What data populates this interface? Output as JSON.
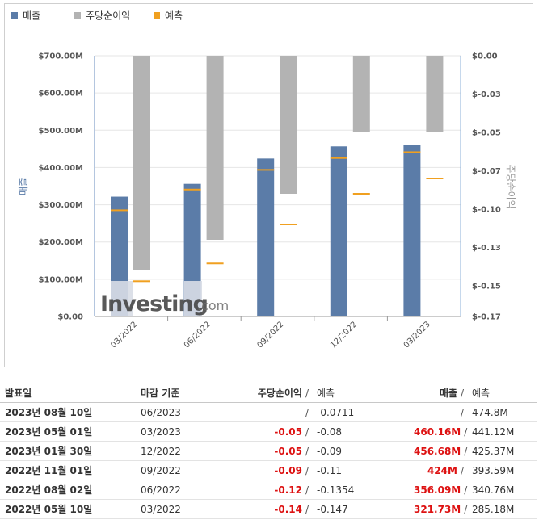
{
  "chart_data": {
    "type": "bar",
    "legend": {
      "placement": "top-left",
      "items": [
        {
          "label": "매출",
          "color": "#5b7ca8"
        },
        {
          "label": "주당순이익",
          "color": "#b3b3b3"
        },
        {
          "label": "예측",
          "color": "#f0a020"
        }
      ]
    },
    "categories": [
      "03/2022",
      "06/2022",
      "09/2022",
      "12/2022",
      "03/2023"
    ],
    "ylabel_left": "매출",
    "ylabel_right": "주당순이익",
    "left_axis": {
      "min": 0,
      "max": 700000000,
      "ticks": [
        0,
        100000000,
        200000000,
        300000000,
        400000000,
        500000000,
        600000000,
        700000000
      ],
      "tick_labels": [
        "$0.00",
        "$100.00M",
        "$200.00M",
        "$300.00M",
        "$400.00M",
        "$500.00M",
        "$600.00M",
        "$700.00M"
      ]
    },
    "right_axis": {
      "min": -0.17,
      "max": 0.0,
      "ticks": [
        0.0,
        -0.025,
        -0.05,
        -0.075,
        -0.1,
        -0.125,
        -0.15,
        -0.175
      ],
      "tick_labels": [
        "$0.00",
        "$-0.03",
        "$-0.05",
        "$-0.07",
        "$-0.10",
        "$-0.13",
        "$-0.15",
        "$-0.17"
      ]
    },
    "series": [
      {
        "name": "매출",
        "axis": "left",
        "values": [
          321730000,
          356090000,
          424000000,
          456680000,
          460160000
        ]
      },
      {
        "name": "매출 예측",
        "axis": "left",
        "values": [
          285180000,
          340760000,
          393590000,
          425370000,
          441120000
        ]
      },
      {
        "name": "주당순이익",
        "axis": "right",
        "values": [
          -0.14,
          -0.12,
          -0.09,
          -0.05,
          -0.05
        ]
      },
      {
        "name": "주당순이익 예측",
        "axis": "right",
        "values": [
          -0.147,
          -0.1354,
          -0.11,
          -0.09,
          -0.08
        ]
      }
    ],
    "watermark": "Investing.com"
  },
  "table": {
    "headers": {
      "date": "발표일",
      "period": "마감 기준",
      "eps": "주당순이익",
      "eps_slash": "/",
      "eps_forecast": "예측",
      "revenue": "매출",
      "rev_slash": "/",
      "rev_forecast": "예측"
    },
    "rows": [
      {
        "date": "2023년 08월 10일",
        "period": "06/2023",
        "eps": "--",
        "eps_forecast": "-0.0711",
        "revenue": "--",
        "rev_forecast": "474.8M"
      },
      {
        "date": "2023년 05월 01일",
        "period": "03/2023",
        "eps": "-0.05",
        "eps_forecast": "-0.08",
        "revenue": "460.16M",
        "rev_forecast": "441.12M"
      },
      {
        "date": "2023년 01월 30일",
        "period": "12/2022",
        "eps": "-0.05",
        "eps_forecast": "-0.09",
        "revenue": "456.68M",
        "rev_forecast": "425.37M"
      },
      {
        "date": "2022년 11월 01일",
        "period": "09/2022",
        "eps": "-0.09",
        "eps_forecast": "-0.11",
        "revenue": "424M",
        "rev_forecast": "393.59M"
      },
      {
        "date": "2022년 08월 02일",
        "period": "06/2022",
        "eps": "-0.12",
        "eps_forecast": "-0.1354",
        "revenue": "356.09M",
        "rev_forecast": "340.76M"
      },
      {
        "date": "2022년 05월 10일",
        "period": "03/2022",
        "eps": "-0.14",
        "eps_forecast": "-0.147",
        "revenue": "321.73M",
        "rev_forecast": "285.18M"
      }
    ]
  }
}
